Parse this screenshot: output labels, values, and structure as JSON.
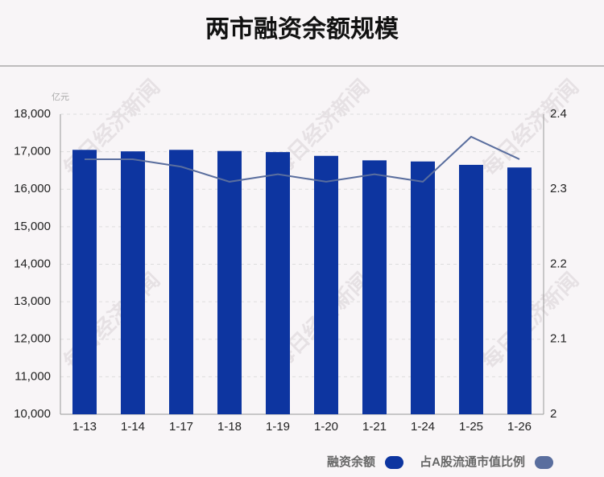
{
  "chart_data": {
    "type": "bar",
    "title": "两市融资余额规模",
    "y_unit": "亿元",
    "watermark": "每日经济新闻",
    "categories": [
      "1-13",
      "1-14",
      "1-17",
      "1-18",
      "1-19",
      "1-20",
      "1-21",
      "1-24",
      "1-25",
      "1-26"
    ],
    "series": [
      {
        "name": "融资余额",
        "type": "bar",
        "color": "#0d35a0",
        "values": [
          17050,
          17010,
          17050,
          17020,
          16990,
          16890,
          16770,
          16740,
          16650,
          16580
        ]
      },
      {
        "name": "占A股流通市值比例",
        "type": "line",
        "axis": "y2",
        "color": "#5a6e9e",
        "values": [
          2.34,
          2.34,
          2.33,
          2.31,
          2.32,
          2.31,
          2.32,
          2.31,
          2.37,
          2.34
        ]
      }
    ],
    "ylim": [
      10000,
      18000
    ],
    "yticks": [
      {
        "value": 10000,
        "label": "10,000"
      },
      {
        "value": 11000,
        "label": "11,000"
      },
      {
        "value": 12000,
        "label": "12,000"
      },
      {
        "value": 13000,
        "label": "13,000"
      },
      {
        "value": 14000,
        "label": "14,000"
      },
      {
        "value": 15000,
        "label": "15,000"
      },
      {
        "value": 16000,
        "label": "16,000"
      },
      {
        "value": 17000,
        "label": "17,000"
      },
      {
        "value": 18000,
        "label": "18,000"
      }
    ],
    "y2lim": [
      2,
      2.4
    ],
    "y2ticks": [
      2,
      2.1,
      2.2,
      2.3,
      2.4
    ],
    "grid": true
  }
}
